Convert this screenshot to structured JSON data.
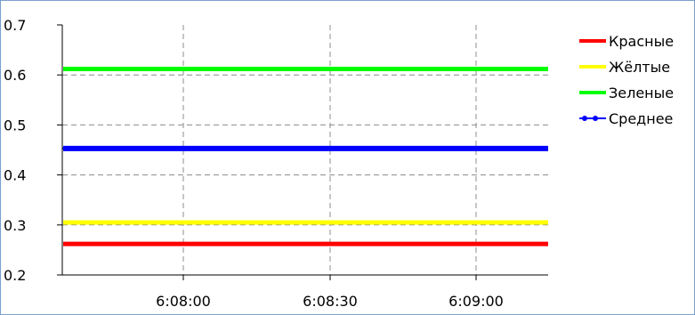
{
  "chart_data": {
    "type": "line",
    "title": "",
    "xlabel": "",
    "ylabel": "",
    "x_ticks": [
      "6:08:00",
      "6:08:30",
      "6:09:00"
    ],
    "y_ticks": [
      "0.2",
      "0.3",
      "0.4",
      "0.5",
      "0.6",
      "0.7"
    ],
    "ylim": [
      0.2,
      0.7
    ],
    "grid": true,
    "legend_position": "right",
    "series": [
      {
        "name": "Красные",
        "color": "#ff0000",
        "marker": "none",
        "y": [
          0.262,
          0.262
        ]
      },
      {
        "name": "Жёлтые",
        "color": "#ffff00",
        "marker": "none",
        "y": [
          0.305,
          0.305
        ]
      },
      {
        "name": "Зеленые",
        "color": "#00ff00",
        "marker": "none",
        "y": [
          0.612,
          0.612
        ]
      },
      {
        "name": "Среднее",
        "color": "#0000ff",
        "marker": "dot",
        "y": [
          0.453,
          0.453
        ]
      }
    ]
  }
}
